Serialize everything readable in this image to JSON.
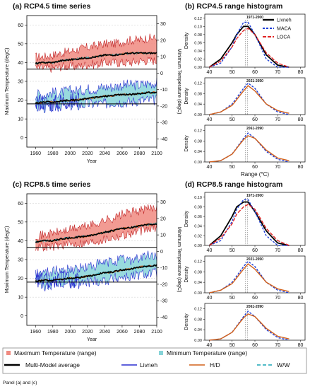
{
  "panels": {
    "a": {
      "title": "(a) RCP4.5 time series",
      "xlabel": "Year",
      "ylabel_left": "Maximum Temperature (degC)",
      "ylabel_right": "Minimum Temperature (degC)",
      "x_ticks": [
        "1960",
        "1980",
        "2000",
        "2020",
        "2040",
        "2060",
        "2080",
        "2100"
      ],
      "y_left_ticks": [
        "0",
        "10",
        "20",
        "30",
        "40",
        "50",
        "60"
      ],
      "y_right_ticks": [
        "30",
        "20",
        "10",
        "0",
        "-10",
        "-20",
        "-30",
        "-40"
      ]
    },
    "b": {
      "title": "(b) RCP4.5 range histogram",
      "xlabel": "Range (°C)",
      "ylabel": "Density",
      "x_ticks": [
        "40",
        "50",
        "60",
        "70",
        "80"
      ],
      "y_ticks_top": [
        "0.00",
        "0.02",
        "0.04",
        "0.06",
        "0.08",
        "0.10",
        "0.12"
      ],
      "y_ticks_sub": [
        "0.00",
        "0.04",
        "0.08",
        "0.12"
      ],
      "subplot_titles": [
        "1971-2000",
        "2021-2050",
        "2061-2090"
      ],
      "legend": [
        "Livneh",
        "MACA",
        "LOCA"
      ]
    },
    "c": {
      "title": "(c) RCP8.5 time series",
      "xlabel": "Year",
      "ylabel_left": "Maximum Temperature (degC)",
      "ylabel_right": "Minimum Temperature (degC)",
      "x_ticks": [
        "1960",
        "1980",
        "2000",
        "2020",
        "2040",
        "2060",
        "2080",
        "2100"
      ],
      "y_left_ticks": [
        "0",
        "10",
        "20",
        "30",
        "40",
        "50",
        "60"
      ],
      "y_right_ticks": [
        "30",
        "20",
        "10",
        "0",
        "-10",
        "-20",
        "-30",
        "-40"
      ]
    },
    "d": {
      "title": "(d) RCP8.5 range histogram",
      "xlabel": "Range (°C)",
      "ylabel": "Density",
      "x_ticks": [
        "40",
        "50",
        "60",
        "70",
        "80"
      ],
      "y_ticks_top": [
        "0.00",
        "0.02",
        "0.04",
        "0.06",
        "0.08",
        "0.10"
      ],
      "y_ticks_sub": [
        "0.00",
        "0.04",
        "0.08",
        "0.12"
      ],
      "subplot_titles": [
        "1971-2000",
        "2021-2050",
        "2061-2090"
      ]
    }
  },
  "legend": {
    "max_range": "Maximum Temperature (range)",
    "min_range": "Minimum Temperature (range)",
    "mm_avg": "Multi-Model average",
    "livneh": "Livneh",
    "hd": "H/D",
    "ww": "W/W"
  },
  "caption": "Panel (a) and (c)",
  "colors": {
    "max_fill": "#f08a80",
    "max_line": "#c0282a",
    "min_fill": "#86d3d8",
    "livneh_line": "#2b2fd0",
    "mm_avg": "#000000",
    "hd": "#d2601a",
    "ww": "#18a5b5",
    "maca": "#1f3fd6",
    "loca": "#e02323"
  },
  "chart_data": [
    {
      "type": "area",
      "panel": "a",
      "x_range": [
        1950,
        2100
      ],
      "ylim_left": [
        -5,
        65
      ],
      "ylim_right": [
        -45,
        35
      ],
      "series": [
        {
          "name": "Maximum Temperature (range)",
          "x": [
            1960,
            1970,
            1980,
            1990,
            2000,
            2010,
            2020,
            2030,
            2040,
            2050,
            2060,
            2070,
            2080,
            2090,
            2100
          ],
          "low": [
            37,
            37,
            37,
            38,
            38,
            38,
            39,
            39,
            40,
            40,
            40,
            40,
            41,
            41,
            41
          ],
          "high": [
            43,
            43,
            44,
            45,
            46,
            47,
            48,
            49,
            50,
            50,
            51,
            52,
            52,
            53,
            53
          ]
        },
        {
          "name": "Multi-Model average (max)",
          "x": [
            1960,
            1970,
            1980,
            1990,
            2000,
            2010,
            2020,
            2030,
            2040,
            2050,
            2060,
            2070,
            2080,
            2090,
            2100
          ],
          "values": [
            39.5,
            40,
            40,
            41,
            41.5,
            42,
            42.5,
            43,
            44,
            44,
            44.5,
            45,
            45,
            45,
            45
          ]
        },
        {
          "name": "Minimum Temperature (range)",
          "x": [
            1960,
            1970,
            1980,
            1990,
            2000,
            2010,
            2020,
            2030,
            2040,
            2050,
            2060,
            2070,
            2080,
            2090,
            2100
          ],
          "low": [
            16,
            16,
            16,
            17,
            17,
            17,
            18,
            18,
            18,
            19,
            19,
            19,
            20,
            20,
            20
          ],
          "high": [
            23,
            23,
            24,
            24,
            25,
            25,
            26,
            26,
            27,
            27,
            28,
            28,
            28,
            29,
            29
          ]
        },
        {
          "name": "Livneh (min)",
          "x": [
            1960,
            1970,
            1980,
            1990,
            2000,
            2010
          ],
          "values": [
            20,
            19,
            18,
            20,
            19,
            20
          ]
        },
        {
          "name": "Multi-Model average (min)",
          "x": [
            1960,
            1970,
            1980,
            1990,
            2000,
            2010,
            2020,
            2030,
            2040,
            2050,
            2060,
            2070,
            2080,
            2090,
            2100
          ],
          "values": [
            18.5,
            19,
            19,
            19.5,
            20,
            20,
            21,
            21.5,
            22,
            22.5,
            23,
            23,
            23.5,
            24,
            24
          ]
        }
      ]
    },
    {
      "type": "line",
      "panel": "b",
      "xlim": [
        38,
        82
      ],
      "ylim": [
        0,
        0.13
      ],
      "subplots": [
        {
          "title": "1971-2000",
          "series": [
            {
              "name": "Livneh",
              "x": [
                40,
                45,
                50,
                52,
                55,
                57,
                60,
                65,
                70,
                75
              ],
              "values": [
                0.0,
                0.02,
                0.06,
                0.08,
                0.1,
                0.1,
                0.08,
                0.03,
                0.005,
                0.0
              ]
            },
            {
              "name": "MACA",
              "x": [
                40,
                45,
                50,
                52,
                55,
                57,
                60,
                65,
                70,
                75
              ],
              "values": [
                0.0,
                0.01,
                0.05,
                0.08,
                0.11,
                0.11,
                0.08,
                0.02,
                0.0,
                0.0
              ]
            },
            {
              "name": "LOCA",
              "x": [
                40,
                45,
                50,
                52,
                55,
                57,
                60,
                65,
                70,
                75
              ],
              "values": [
                0.0,
                0.015,
                0.05,
                0.07,
                0.09,
                0.095,
                0.08,
                0.035,
                0.01,
                0.0
              ]
            }
          ]
        },
        {
          "title": "2021-2050",
          "series": [
            {
              "name": "MACA",
              "x": [
                40,
                45,
                50,
                55,
                57,
                60,
                65,
                70,
                75
              ],
              "values": [
                0.0,
                0.01,
                0.04,
                0.1,
                0.12,
                0.1,
                0.04,
                0.01,
                0.0
              ]
            },
            {
              "name": "LOCA",
              "x": [
                40,
                45,
                50,
                55,
                57,
                60,
                65,
                70,
                75
              ],
              "values": [
                0.0,
                0.01,
                0.035,
                0.09,
                0.11,
                0.09,
                0.04,
                0.015,
                0.005
              ]
            }
          ]
        },
        {
          "title": "2061-2090",
          "series": [
            {
              "name": "MACA",
              "x": [
                40,
                45,
                50,
                55,
                57,
                60,
                65,
                70,
                75
              ],
              "values": [
                0.0,
                0.005,
                0.03,
                0.09,
                0.11,
                0.09,
                0.04,
                0.01,
                0.0
              ]
            },
            {
              "name": "LOCA",
              "x": [
                40,
                45,
                50,
                55,
                57,
                60,
                65,
                70,
                75
              ],
              "values": [
                0.0,
                0.005,
                0.03,
                0.085,
                0.1,
                0.09,
                0.045,
                0.015,
                0.005
              ]
            }
          ]
        }
      ]
    },
    {
      "type": "area",
      "panel": "c",
      "x_range": [
        1950,
        2100
      ],
      "ylim_left": [
        -5,
        65
      ],
      "ylim_right": [
        -45,
        35
      ],
      "series": [
        {
          "name": "Maximum Temperature (range)",
          "x": [
            1960,
            1970,
            1980,
            1990,
            2000,
            2010,
            2020,
            2030,
            2040,
            2050,
            2060,
            2070,
            2080,
            2090,
            2100
          ],
          "low": [
            37,
            37,
            37,
            38,
            38,
            39,
            39,
            40,
            41,
            42,
            43,
            44,
            45,
            46,
            47
          ],
          "high": [
            43,
            43,
            44,
            45,
            46,
            47,
            48,
            49,
            51,
            52,
            54,
            55,
            56,
            57,
            58
          ]
        },
        {
          "name": "Multi-Model average (max)",
          "x": [
            1960,
            1970,
            1980,
            1990,
            2000,
            2010,
            2020,
            2030,
            2040,
            2050,
            2060,
            2070,
            2080,
            2090,
            2100
          ],
          "values": [
            39.5,
            40,
            40,
            41,
            41.5,
            42,
            42.5,
            43.5,
            44.5,
            45.5,
            46.5,
            47,
            48,
            48.5,
            49
          ]
        },
        {
          "name": "Minimum Temperature (range)",
          "x": [
            1960,
            1970,
            1980,
            1990,
            2000,
            2010,
            2020,
            2030,
            2040,
            2050,
            2060,
            2070,
            2080,
            2090,
            2100
          ],
          "low": [
            16,
            16,
            16,
            17,
            17,
            17,
            18,
            19,
            19,
            20,
            21,
            21,
            22,
            23,
            23
          ],
          "high": [
            23,
            23,
            24,
            24,
            25,
            25,
            26,
            27,
            28,
            29,
            30,
            30,
            31,
            32,
            32
          ]
        },
        {
          "name": "Livneh (min)",
          "x": [
            1960,
            1970,
            1980,
            1990,
            2000,
            2010
          ],
          "values": [
            20,
            19,
            18,
            20,
            19,
            20
          ]
        },
        {
          "name": "Multi-Model average (min)",
          "x": [
            1960,
            1970,
            1980,
            1990,
            2000,
            2010,
            2020,
            2030,
            2040,
            2050,
            2060,
            2070,
            2080,
            2090,
            2100
          ],
          "values": [
            18.5,
            19,
            19,
            19.5,
            20,
            20.5,
            21,
            22,
            23,
            23.5,
            24.5,
            25,
            26,
            26.5,
            27
          ]
        }
      ]
    },
    {
      "type": "line",
      "panel": "d",
      "xlim": [
        38,
        82
      ],
      "ylim": [
        0,
        0.11
      ],
      "subplots": [
        {
          "title": "1971-2000",
          "series": [
            {
              "name": "Livneh",
              "x": [
                40,
                45,
                50,
                52,
                55,
                57,
                60,
                65,
                70,
                75
              ],
              "values": [
                0.0,
                0.02,
                0.06,
                0.08,
                0.09,
                0.09,
                0.07,
                0.03,
                0.005,
                0.0
              ]
            },
            {
              "name": "MACA",
              "x": [
                40,
                45,
                50,
                52,
                55,
                57,
                60,
                65,
                70,
                75
              ],
              "values": [
                0.0,
                0.01,
                0.05,
                0.075,
                0.095,
                0.095,
                0.07,
                0.02,
                0.0,
                0.0
              ]
            },
            {
              "name": "LOCA",
              "x": [
                40,
                45,
                50,
                52,
                55,
                57,
                60,
                65,
                70,
                75
              ],
              "values": [
                0.0,
                0.015,
                0.045,
                0.065,
                0.08,
                0.085,
                0.075,
                0.035,
                0.01,
                0.0
              ]
            }
          ]
        },
        {
          "title": "2021-2050",
          "series": [
            {
              "name": "MACA",
              "x": [
                40,
                45,
                50,
                55,
                57,
                60,
                65,
                70,
                75
              ],
              "values": [
                0.0,
                0.01,
                0.04,
                0.1,
                0.12,
                0.1,
                0.04,
                0.01,
                0.0
              ]
            },
            {
              "name": "LOCA",
              "x": [
                40,
                45,
                50,
                55,
                57,
                60,
                65,
                70,
                75
              ],
              "values": [
                0.0,
                0.01,
                0.035,
                0.09,
                0.11,
                0.09,
                0.04,
                0.015,
                0.005
              ]
            }
          ]
        },
        {
          "title": "2061-2090",
          "series": [
            {
              "name": "MACA",
              "x": [
                40,
                45,
                50,
                55,
                57,
                60,
                65,
                70,
                75
              ],
              "values": [
                0.0,
                0.005,
                0.03,
                0.09,
                0.11,
                0.09,
                0.04,
                0.01,
                0.0
              ]
            },
            {
              "name": "LOCA",
              "x": [
                40,
                45,
                50,
                55,
                57,
                60,
                65,
                70,
                75
              ],
              "values": [
                0.0,
                0.005,
                0.03,
                0.085,
                0.1,
                0.09,
                0.045,
                0.015,
                0.005
              ]
            }
          ]
        }
      ]
    }
  ]
}
